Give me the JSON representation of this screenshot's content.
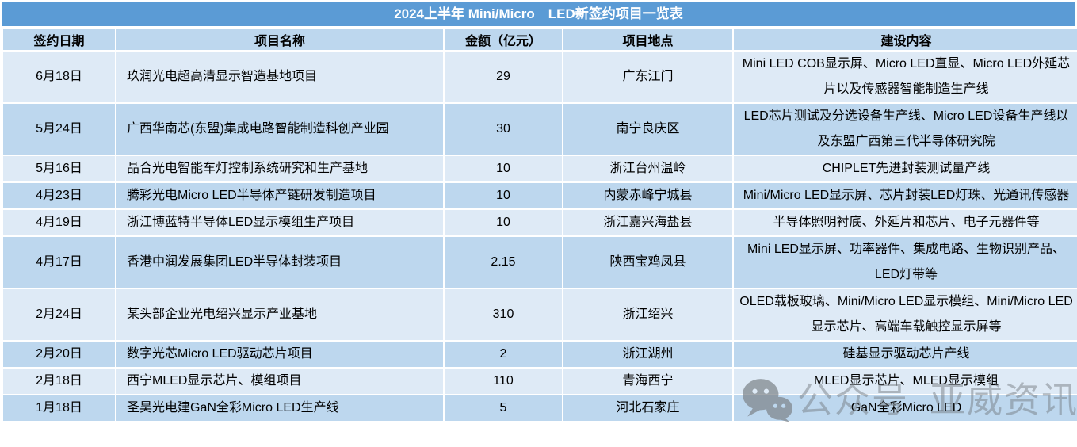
{
  "watermark": {
    "icon": "wechat-icon",
    "label_prefix": "公众号",
    "label_name": "亚威资讯"
  },
  "colors": {
    "title_bg": "#5B9BD5",
    "title_text": "#FFFFFF",
    "header_bg": "#BDD7EE",
    "row_light": "#DEEAF6",
    "row_dark": "#BDD7EE",
    "grid": "#FFFFFF",
    "cell_text": "#000000",
    "watermark_gray": "#8C9196"
  },
  "chart_data": {
    "type": "table",
    "title": "2024上半年 Mini/Micro　LED新签约项目一览表",
    "columns": [
      "签约日期",
      "项目名称",
      "金额（亿元）",
      "项目地点",
      "建设内容"
    ],
    "rows": [
      {
        "date": "6月18日",
        "name": "玖润光电超高清显示智造基地项目",
        "amount": "29",
        "location": "广东江门",
        "content": "Mini LED COB显示屏、Micro LED直显、Micro LED外延芯片以及传感器智能制造生产线"
      },
      {
        "date": "5月24日",
        "name": "广西华南芯(东盟)集成电路智能制造科创产业园",
        "amount": "30",
        "location": "南宁良庆区",
        "content": "LED芯片测试及分选设备生产线、Micro LED设备生产线以及东盟广西第三代半导体研究院"
      },
      {
        "date": "5月16日",
        "name": "晶合光电智能车灯控制系统研究和生产基地",
        "amount": "10",
        "location": "浙江台州温岭",
        "content": "CHIPLET先进封装测试量产线"
      },
      {
        "date": "4月23日",
        "name": "腾彩光电Micro LED半导体产链研发制造项目",
        "amount": "10",
        "location": "内蒙赤峰宁城县",
        "content": "Mini/Micro LED显示屏、芯片封装LED灯珠、光通讯传感器"
      },
      {
        "date": "4月19日",
        "name": "浙江博蓝特半导体LED显示模组生产项目",
        "amount": "10",
        "location": "浙江嘉兴海盐县",
        "content": "半导体照明衬底、外延片和芯片、电子元器件等"
      },
      {
        "date": "4月17日",
        "name": "香港中润发展集团LED半导体封装项目",
        "amount": "2.15",
        "location": "陕西宝鸡凤县",
        "content": "Mini LED显示屏、功率器件、集成电路、生物识别产品、LED灯带等"
      },
      {
        "date": "2月24日",
        "name": "某头部企业光电绍兴显示产业基地",
        "amount": "310",
        "location": "浙江绍兴",
        "content": "OLED载板玻璃、Mini/Micro LED显示模组、Mini/Micro LED显示芯片、高端车载触控显示屏等"
      },
      {
        "date": "2月20日",
        "name": "数字光芯Micro LED驱动芯片项目",
        "amount": "2",
        "location": "浙江湖州",
        "content": "硅基显示驱动芯片产线"
      },
      {
        "date": "2月18日",
        "name": "西宁MLED显示芯片、模组项目",
        "amount": "110",
        "location": "青海西宁",
        "content": "MLED显示芯片、MLED显示模组"
      },
      {
        "date": "1月18日",
        "name": "圣昊光电建GaN全彩Micro LED生产线",
        "amount": "5",
        "location": "河北石家庄",
        "content": "GaN全彩Micro LED"
      }
    ]
  }
}
